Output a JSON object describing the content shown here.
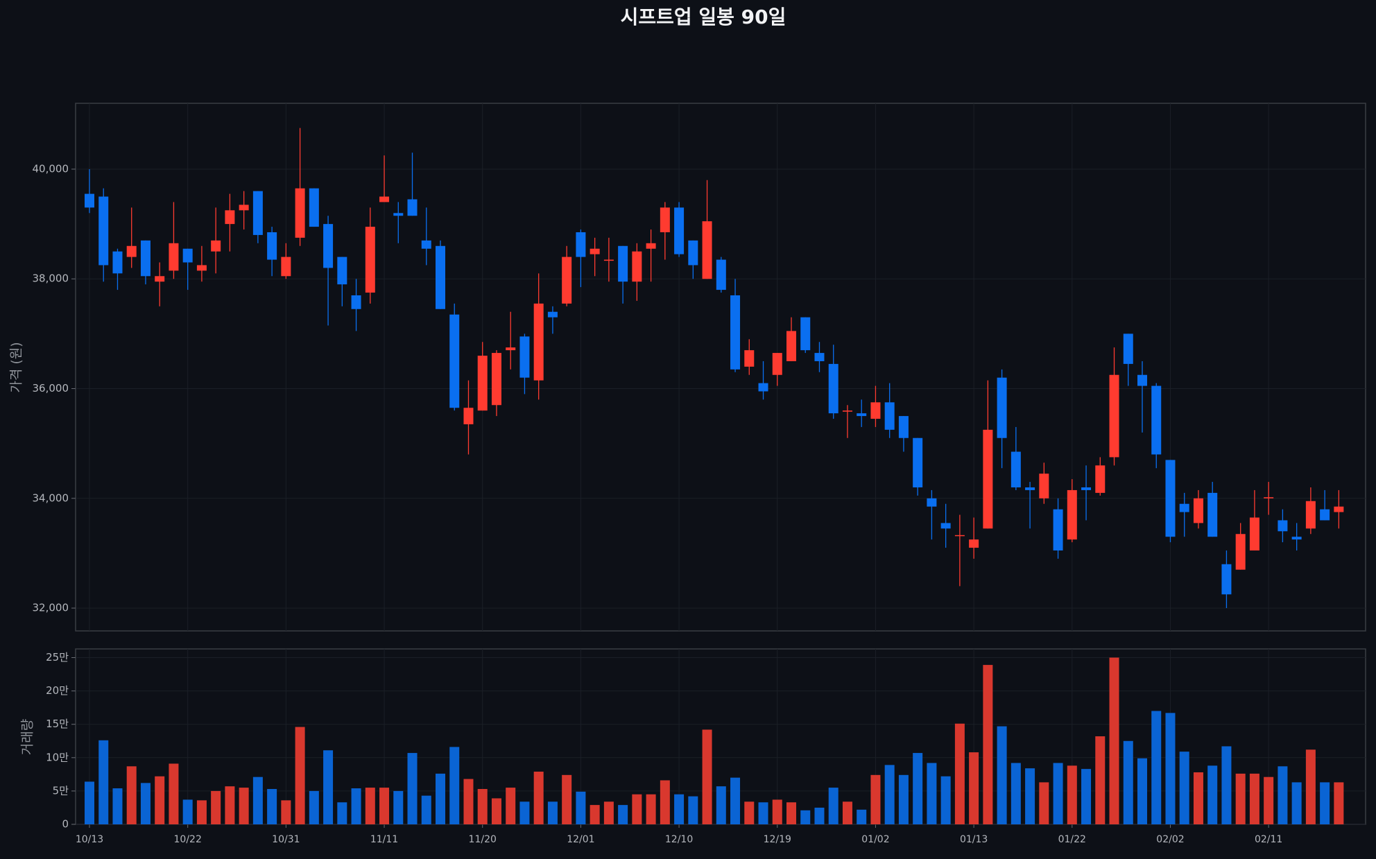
{
  "chart_data": [
    {
      "type": "candlestick",
      "title": "시프트업 일봉 90일",
      "ylabel": "가격 (원)",
      "up_color": "#ff3b30",
      "down_color": "#0a6ff0",
      "grid": true,
      "ylim": [
        31584,
        41200
      ],
      "yticks": [
        {
          "value": 32000,
          "label": "32,000"
        },
        {
          "value": 34000,
          "label": "34,000"
        },
        {
          "value": 36000,
          "label": "36,000"
        },
        {
          "value": 38000,
          "label": "38,000"
        },
        {
          "value": 40000,
          "label": "40,000"
        }
      ],
      "open": [
        39550,
        39500,
        38500,
        38400,
        38700,
        37950,
        38150,
        38550,
        38150,
        38500,
        39000,
        39250,
        39600,
        38850,
        38050,
        38750,
        39650,
        39000,
        38400,
        37700,
        37750,
        39400,
        39200,
        39450,
        38700,
        38600,
        37350,
        35350,
        35600,
        35700,
        36700,
        36950,
        36150,
        37400,
        37550,
        38850,
        38450,
        38330,
        38600,
        37950,
        38550,
        38850,
        39300,
        38700,
        38000,
        38350,
        37700,
        36400,
        36100,
        36250,
        36500,
        37300,
        36650,
        36450,
        35580,
        35550,
        35450,
        35750,
        35500,
        35100,
        34000,
        33550,
        33320,
        33100,
        33450,
        36200,
        34850,
        34200,
        34000,
        33800,
        33250,
        34200,
        34100,
        34750,
        37000,
        36250,
        36050,
        34700,
        33900,
        33550,
        34100,
        32800,
        32700,
        33050,
        34000,
        33600,
        33300,
        33450,
        33800,
        33750
      ],
      "high": [
        40000,
        39650,
        38550,
        39300,
        38700,
        38300,
        39400,
        38550,
        38600,
        39300,
        39550,
        39600,
        39600,
        38950,
        38650,
        40750,
        39650,
        39150,
        38400,
        38000,
        39300,
        40250,
        39400,
        40300,
        39300,
        38700,
        37550,
        36150,
        36850,
        36700,
        37400,
        37000,
        38100,
        37500,
        38600,
        38900,
        38750,
        38750,
        38600,
        38650,
        38900,
        39400,
        39400,
        38700,
        39800,
        38400,
        38000,
        36900,
        36500,
        36650,
        37300,
        37300,
        36850,
        36800,
        35700,
        35800,
        36050,
        36100,
        35500,
        35100,
        34150,
        33900,
        33700,
        33650,
        36150,
        36350,
        35300,
        34300,
        34650,
        34000,
        34350,
        34600,
        34750,
        36750,
        37000,
        36500,
        36100,
        34700,
        34100,
        34150,
        34300,
        33050,
        33550,
        34150,
        34300,
        33800,
        33550,
        34200,
        34150,
        34150
      ],
      "low": [
        39200,
        37950,
        37800,
        38200,
        37900,
        37500,
        38000,
        37800,
        37950,
        38100,
        38500,
        38900,
        38650,
        38050,
        38000,
        38600,
        38950,
        37150,
        37500,
        37050,
        37550,
        39400,
        38650,
        39150,
        38250,
        37450,
        35600,
        34800,
        35600,
        35500,
        36350,
        35900,
        35800,
        37000,
        37500,
        37850,
        38050,
        37950,
        37550,
        37600,
        37950,
        38350,
        38400,
        38000,
        38000,
        37750,
        36300,
        36250,
        35800,
        36050,
        36500,
        36650,
        36300,
        35450,
        35100,
        35300,
        35300,
        35100,
        34850,
        34050,
        33250,
        33100,
        32400,
        32900,
        33450,
        34550,
        34150,
        33450,
        33900,
        32900,
        33200,
        33600,
        34050,
        34600,
        36050,
        35200,
        34550,
        33200,
        33300,
        33450,
        33300,
        32000,
        32700,
        33050,
        33700,
        33200,
        33050,
        33350,
        33600,
        33450
      ],
      "close": [
        39300,
        38250,
        38100,
        38600,
        38050,
        38050,
        38650,
        38300,
        38250,
        38700,
        39250,
        39350,
        38800,
        38350,
        38400,
        39650,
        38950,
        38200,
        37900,
        37450,
        38950,
        39500,
        39150,
        39150,
        38550,
        37450,
        35650,
        35650,
        36600,
        36650,
        36750,
        36200,
        37550,
        37300,
        38400,
        38400,
        38550,
        38350,
        37950,
        38500,
        38650,
        39300,
        38450,
        38250,
        39050,
        37800,
        36350,
        36700,
        35950,
        36650,
        37050,
        36700,
        36500,
        35550,
        35600,
        35500,
        35750,
        35250,
        35100,
        34200,
        33850,
        33450,
        33330,
        33250,
        35250,
        35100,
        34200,
        34150,
        34450,
        33050,
        34150,
        34150,
        34600,
        36250,
        36450,
        36050,
        34800,
        33300,
        33750,
        34000,
        33300,
        32250,
        33350,
        33650,
        34020,
        33400,
        33250,
        33950,
        33600,
        33850
      ]
    },
    {
      "type": "bar",
      "ylabel": "거래량",
      "up_color": "#d9382e",
      "down_color": "#0a64d4",
      "grid": true,
      "ylim": [
        0,
        263000
      ],
      "yticks": [
        0,
        {
          "value": 50000,
          "label": "5만"
        },
        {
          "value": 100000,
          "label": "10만"
        },
        {
          "value": 150000,
          "label": "15만"
        },
        {
          "value": 200000,
          "label": "20만"
        },
        {
          "value": 250000,
          "label": "25만"
        }
      ],
      "categories": [
        "10/13",
        null,
        null,
        null,
        null,
        null,
        null,
        "10/22",
        null,
        null,
        null,
        null,
        null,
        null,
        "10/31",
        null,
        null,
        null,
        null,
        null,
        null,
        "11/11",
        null,
        null,
        null,
        null,
        null,
        null,
        "11/20",
        null,
        null,
        null,
        null,
        null,
        null,
        "12/01",
        null,
        null,
        null,
        null,
        null,
        null,
        "12/10",
        null,
        null,
        null,
        null,
        null,
        null,
        "12/19",
        null,
        null,
        null,
        null,
        null,
        null,
        "01/02",
        null,
        null,
        null,
        null,
        null,
        null,
        "01/13",
        null,
        null,
        null,
        null,
        null,
        null,
        "01/22",
        null,
        null,
        null,
        null,
        null,
        null,
        "02/02",
        null,
        null,
        null,
        null,
        null,
        null,
        "02/11",
        null,
        null,
        null,
        null,
        null
      ],
      "values": [
        64000,
        126000,
        54000,
        87000,
        62000,
        72000,
        91000,
        37000,
        36000,
        50000,
        57000,
        55000,
        71000,
        53000,
        36000,
        146000,
        50000,
        111000,
        33000,
        54000,
        55000,
        55000,
        50000,
        107000,
        43000,
        76000,
        116000,
        68000,
        53000,
        39000,
        55000,
        34000,
        79000,
        34000,
        74000,
        49000,
        29000,
        34000,
        29000,
        45000,
        45000,
        66000,
        45000,
        42000,
        142000,
        57000,
        70000,
        34000,
        33000,
        37000,
        33000,
        21000,
        25000,
        55000,
        34000,
        22000,
        74000,
        89000,
        74000,
        107000,
        92000,
        72000,
        151000,
        108000,
        239000,
        147000,
        92000,
        84000,
        63000,
        92000,
        88000,
        83000,
        132000,
        250000,
        125000,
        99000,
        170000,
        167000,
        109000,
        78000,
        88000,
        117000,
        76000,
        76000,
        71000,
        87000,
        63000,
        112000,
        63000,
        63000
      ]
    }
  ]
}
